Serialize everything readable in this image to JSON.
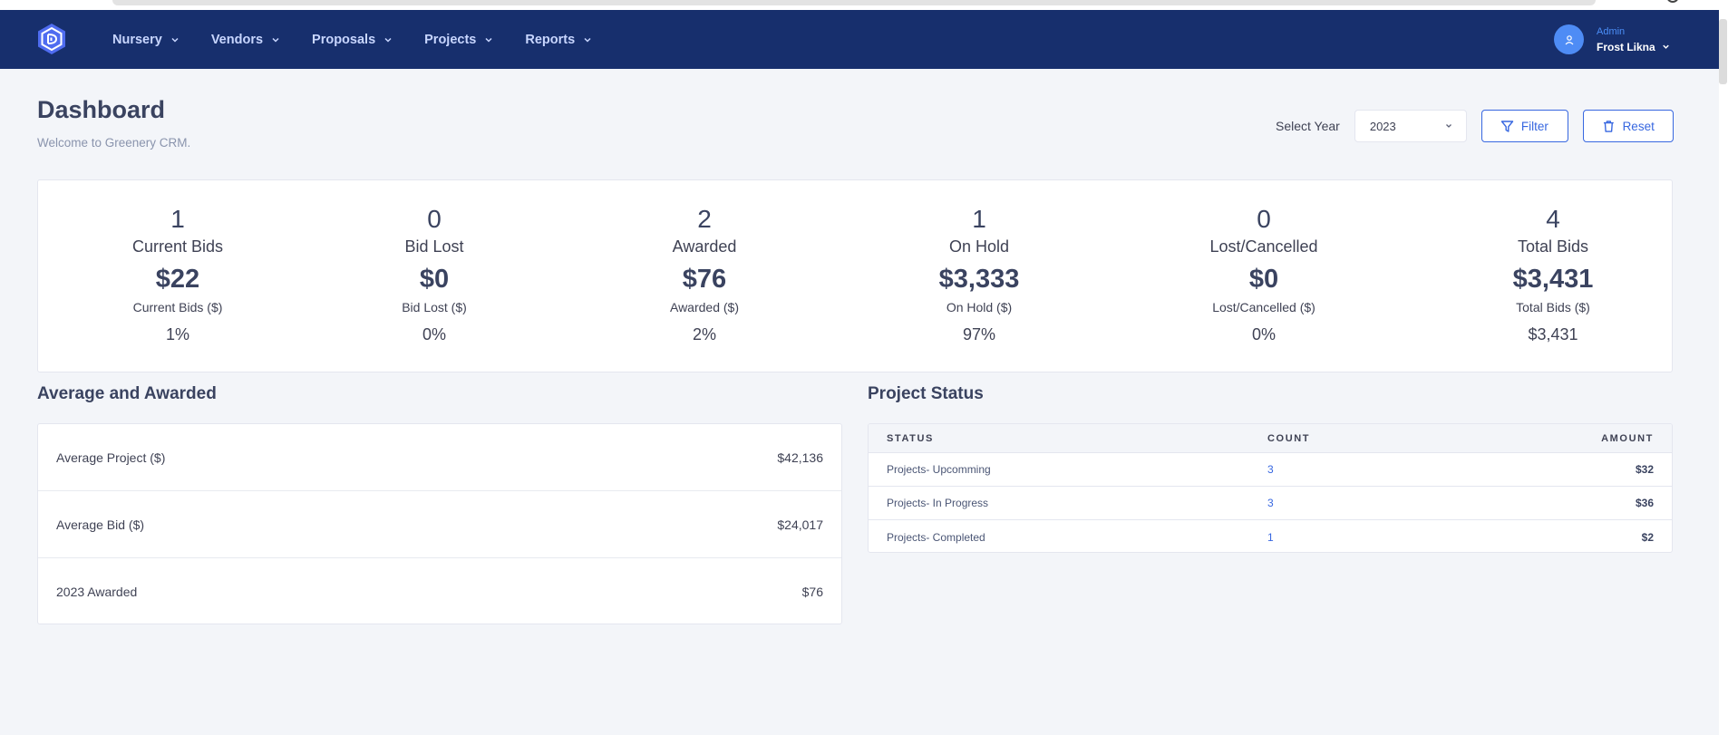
{
  "header": {
    "nav": [
      {
        "label": "Nursery"
      },
      {
        "label": "Vendors"
      },
      {
        "label": "Proposals"
      },
      {
        "label": "Projects"
      },
      {
        "label": "Reports"
      }
    ],
    "user": {
      "role": "Admin",
      "name": "Frost Likna"
    },
    "colors": {
      "bar": "#172f6d",
      "nav_text": "#c8d6ff",
      "avatar": "#4e8cf5"
    }
  },
  "page": {
    "title": "Dashboard",
    "subtitle": "Welcome to Greenery CRM."
  },
  "toolbar": {
    "year_label": "Select Year",
    "year_value": "2023",
    "filter_label": "Filter",
    "reset_label": "Reset",
    "accent": "#3767e0"
  },
  "stats": [
    {
      "count": "1",
      "label": "Current Bids",
      "amount": "$22",
      "amount_label": "Current Bids ($)",
      "pct": "1%"
    },
    {
      "count": "0",
      "label": "Bid Lost",
      "amount": "$0",
      "amount_label": "Bid Lost ($)",
      "pct": "0%"
    },
    {
      "count": "2",
      "label": "Awarded",
      "amount": "$76",
      "amount_label": "Awarded ($)",
      "pct": "2%"
    },
    {
      "count": "1",
      "label": "On Hold",
      "amount": "$3,333",
      "amount_label": "On Hold ($)",
      "pct": "97%"
    },
    {
      "count": "0",
      "label": "Lost/Cancelled",
      "amount": "$0",
      "amount_label": "Lost/Cancelled ($)",
      "pct": "0%"
    },
    {
      "count": "4",
      "label": "Total Bids",
      "amount": "$3,431",
      "amount_label": "Total Bids ($)",
      "pct": "$3,431"
    }
  ],
  "average": {
    "title": "Average and Awarded",
    "rows": [
      {
        "label": "Average Project ($)",
        "value": "$42,136"
      },
      {
        "label": "Average Bid ($)",
        "value": "$24,017"
      },
      {
        "label": "2023 Awarded",
        "value": "$76"
      }
    ]
  },
  "project_status": {
    "title": "Project Status",
    "columns": {
      "status": "STATUS",
      "count": "COUNT",
      "amount": "AMOUNT"
    },
    "rows": [
      {
        "status": "Projects- Upcomming",
        "count": "3",
        "amount": "$32"
      },
      {
        "status": "Projects- In Progress",
        "count": "3",
        "amount": "$36"
      },
      {
        "status": "Projects- Completed",
        "count": "1",
        "amount": "$2"
      }
    ]
  }
}
